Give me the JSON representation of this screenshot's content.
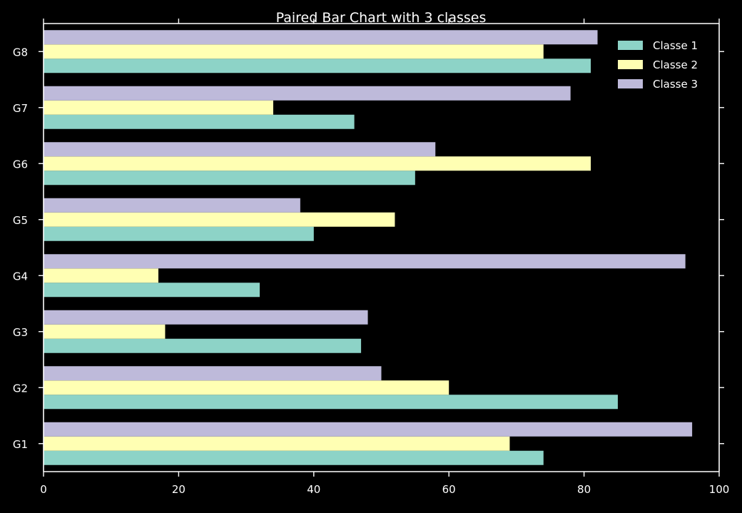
{
  "chart_data": {
    "type": "bar",
    "orientation": "horizontal",
    "title": "Paired Bar Chart with 3 classes",
    "xlabel": "",
    "ylabel": "",
    "categories": [
      "G1",
      "G2",
      "G3",
      "G4",
      "G5",
      "G6",
      "G7",
      "G8"
    ],
    "xlim": [
      0,
      100
    ],
    "xticks": [
      0,
      20,
      40,
      60,
      80,
      100
    ],
    "grid": false,
    "legend_position": "top-right",
    "background": "#000000",
    "series": [
      {
        "name": "Classe 1",
        "color": "#8dd3c7",
        "values": [
          74,
          85,
          47,
          32,
          40,
          55,
          46,
          81
        ]
      },
      {
        "name": "Classe 2",
        "color": "#ffffb3",
        "values": [
          69,
          60,
          18,
          17,
          52,
          81,
          34,
          74
        ]
      },
      {
        "name": "Classe 3",
        "color": "#bebada",
        "values": [
          96,
          50,
          48,
          95,
          38,
          58,
          78,
          82
        ]
      }
    ]
  }
}
